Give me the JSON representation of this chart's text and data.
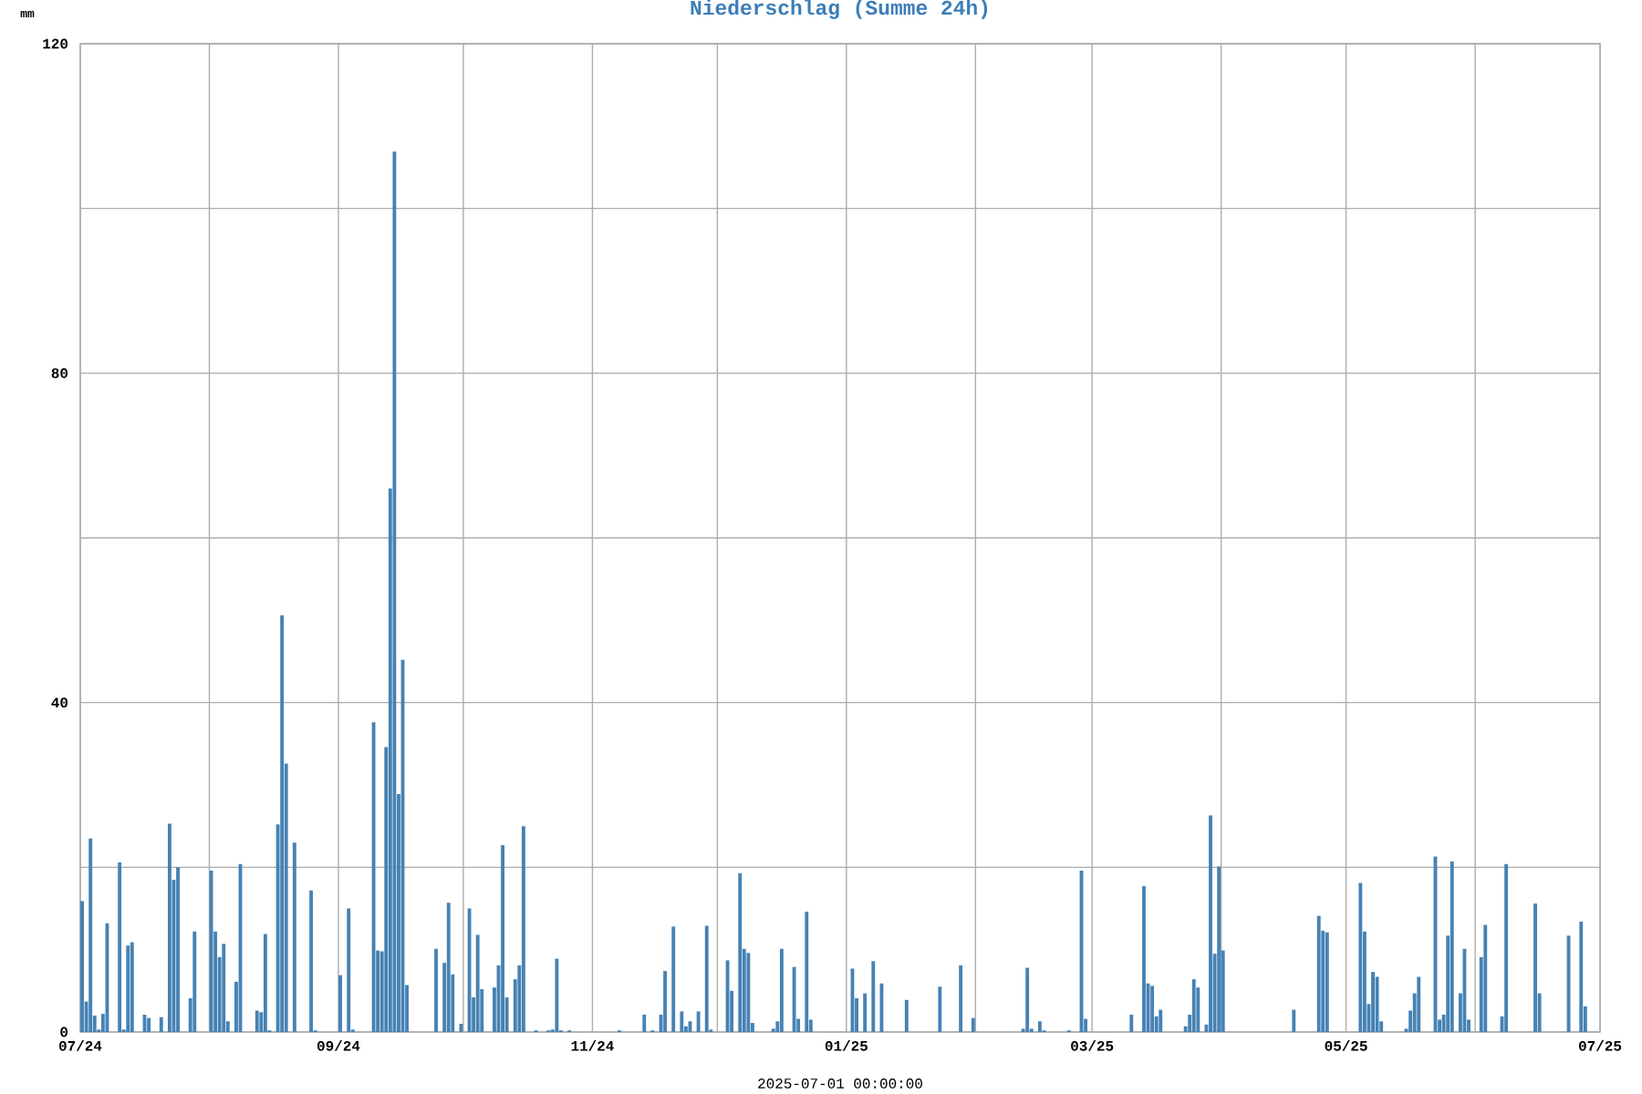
{
  "chart_data": {
    "type": "bar",
    "title": "Niederschlag (Summe 24h)",
    "xlabel": "2025-07-01 00:00:00",
    "ylabel": "mm",
    "color": "#4682b4",
    "x": [
      "2024-07-01",
      "2024-07-02",
      "2024-07-03",
      "2024-07-04",
      "2024-07-05",
      "2024-07-06",
      "2024-07-07",
      "2024-07-10",
      "2024-07-11",
      "2024-07-12",
      "2024-07-13",
      "2024-07-16",
      "2024-07-17",
      "2024-07-20",
      "2024-07-22",
      "2024-07-23",
      "2024-07-24",
      "2024-07-27",
      "2024-07-28",
      "2024-08-01",
      "2024-08-02",
      "2024-08-03",
      "2024-08-04",
      "2024-08-05",
      "2024-08-07",
      "2024-08-08",
      "2024-08-12",
      "2024-08-13",
      "2024-08-14",
      "2024-08-15",
      "2024-08-17",
      "2024-08-18",
      "2024-08-19",
      "2024-08-21",
      "2024-08-25",
      "2024-08-26",
      "2024-09-01",
      "2024-09-03",
      "2024-09-04",
      "2024-09-09",
      "2024-09-10",
      "2024-09-11",
      "2024-09-12",
      "2024-09-13",
      "2024-09-14",
      "2024-09-15",
      "2024-09-16",
      "2024-09-17",
      "2024-09-24",
      "2024-09-26",
      "2024-09-27",
      "2024-09-28",
      "2024-09-30",
      "2024-10-02",
      "2024-10-03",
      "2024-10-04",
      "2024-10-05",
      "2024-10-08",
      "2024-10-09",
      "2024-10-10",
      "2024-10-11",
      "2024-10-13",
      "2024-10-14",
      "2024-10-15",
      "2024-10-18",
      "2024-10-21",
      "2024-10-22",
      "2024-10-23",
      "2024-10-24",
      "2024-10-26",
      "2024-11-07",
      "2024-11-13",
      "2024-11-15",
      "2024-11-17",
      "2024-11-18",
      "2024-11-20",
      "2024-11-22",
      "2024-11-23",
      "2024-11-24",
      "2024-11-26",
      "2024-11-28",
      "2024-11-29",
      "2024-12-03",
      "2024-12-04",
      "2024-12-06",
      "2024-12-07",
      "2024-12-08",
      "2024-12-09",
      "2024-12-14",
      "2024-12-15",
      "2024-12-16",
      "2024-12-19",
      "2024-12-20",
      "2024-12-22",
      "2024-12-23",
      "2025-01-02",
      "2025-01-03",
      "2025-01-05",
      "2025-01-07",
      "2025-01-09",
      "2025-01-15",
      "2025-01-23",
      "2025-01-28",
      "2025-01-31",
      "2025-02-12",
      "2025-02-13",
      "2025-02-14",
      "2025-02-16",
      "2025-02-17",
      "2025-02-23",
      "2025-02-26",
      "2025-02-27",
      "2025-03-10",
      "2025-03-13",
      "2025-03-14",
      "2025-03-15",
      "2025-03-16",
      "2025-03-17",
      "2025-03-23",
      "2025-03-24",
      "2025-03-25",
      "2025-03-26",
      "2025-03-28",
      "2025-03-29",
      "2025-03-30",
      "2025-03-31",
      "2025-04-01",
      "2025-04-18",
      "2025-04-24",
      "2025-04-25",
      "2025-04-26",
      "2025-05-04",
      "2025-05-05",
      "2025-05-06",
      "2025-05-07",
      "2025-05-08",
      "2025-05-09",
      "2025-05-15",
      "2025-05-16",
      "2025-05-17",
      "2025-05-18",
      "2025-05-22",
      "2025-05-23",
      "2025-05-24",
      "2025-05-25",
      "2025-05-26",
      "2025-05-28",
      "2025-05-29",
      "2025-05-30",
      "2025-06-02",
      "2025-06-03",
      "2025-06-07",
      "2025-06-08",
      "2025-06-15",
      "2025-06-16",
      "2025-06-23",
      "2025-06-26",
      "2025-06-27"
    ],
    "values": [
      15.9,
      3.7,
      23.5,
      2.0,
      0.3,
      2.2,
      13.2,
      20.6,
      0.3,
      10.5,
      10.9,
      2.1,
      1.7,
      1.8,
      25.3,
      18.5,
      20.0,
      4.1,
      12.2,
      19.6,
      12.2,
      9.1,
      10.7,
      1.3,
      6.1,
      20.4,
      2.6,
      2.4,
      11.9,
      0.2,
      25.2,
      50.6,
      32.6,
      23.0,
      17.2,
      0.2,
      6.9,
      15.0,
      0.3,
      37.6,
      9.9,
      9.8,
      34.6,
      66.0,
      106.9,
      28.9,
      45.2,
      5.7,
      10.1,
      8.4,
      15.7,
      7.0,
      1.0,
      15.0,
      4.2,
      11.8,
      5.2,
      5.4,
      8.1,
      22.7,
      4.2,
      6.4,
      8.1,
      25.0,
      0.2,
      0.2,
      0.3,
      8.9,
      0.2,
      0.2,
      0.2,
      2.1,
      0.2,
      2.1,
      7.4,
      12.8,
      2.5,
      0.7,
      1.3,
      2.5,
      12.9,
      0.3,
      8.7,
      5.0,
      19.3,
      10.1,
      9.6,
      1.1,
      0.4,
      1.3,
      10.1,
      7.9,
      1.6,
      14.6,
      1.5,
      7.7,
      4.1,
      4.7,
      8.6,
      5.9,
      3.9,
      5.5,
      8.1,
      1.7,
      0.4,
      7.8,
      0.4,
      1.3,
      0.2,
      0.2,
      19.6,
      1.6,
      2.1,
      17.7,
      5.9,
      5.6,
      1.9,
      2.7,
      0.7,
      2.1,
      6.4,
      5.4,
      0.9,
      26.3,
      9.5,
      20.1,
      9.9,
      2.7,
      14.1,
      12.3,
      12.1,
      18.1,
      12.2,
      3.4,
      7.3,
      6.7,
      1.3,
      0.4,
      2.6,
      4.7,
      6.7,
      21.3,
      1.5,
      2.1,
      11.7,
      20.7,
      4.7,
      10.1,
      1.5,
      9.1,
      13.0,
      1.9,
      20.4,
      15.6,
      4.7,
      11.7,
      13.4,
      3.1
    ],
    "xlim": [
      "2024-07-01",
      "2025-07-01"
    ],
    "xticks": [
      {
        "value": "2024-07-01",
        "label": "07/24"
      },
      {
        "value": "2024-08-01",
        "label": null
      },
      {
        "value": "2024-09-01",
        "label": "09/24"
      },
      {
        "value": "2024-10-01",
        "label": null
      },
      {
        "value": "2024-11-01",
        "label": "11/24"
      },
      {
        "value": "2024-12-01",
        "label": null
      },
      {
        "value": "2025-01-01",
        "label": "01/25"
      },
      {
        "value": "2025-02-01",
        "label": null
      },
      {
        "value": "2025-03-01",
        "label": "03/25"
      },
      {
        "value": "2025-04-01",
        "label": null
      },
      {
        "value": "2025-05-01",
        "label": "05/25"
      },
      {
        "value": "2025-06-01",
        "label": null
      },
      {
        "value": "2025-07-01",
        "label": "07/25"
      }
    ],
    "ylim": [
      0,
      120
    ],
    "yticks": [
      0,
      {
        "value": 20,
        "label": null
      },
      40,
      {
        "value": 60,
        "label": null
      },
      80,
      {
        "value": 100,
        "label": null
      },
      120
    ],
    "grid": true
  }
}
